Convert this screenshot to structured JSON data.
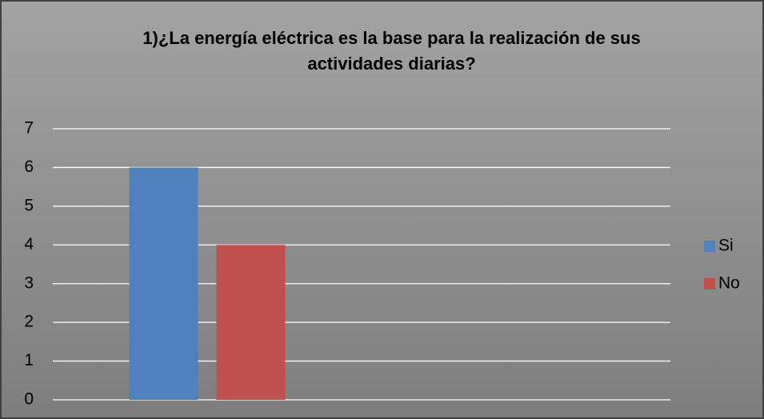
{
  "chart_data": {
    "type": "bar",
    "title": "1)¿La energía eléctrica es la base para la realización de sus actividades diarias?",
    "categories": [
      null,
      null
    ],
    "series": [
      {
        "name": "Si",
        "color": "#4f81bd",
        "values": [
          6,
          null
        ]
      },
      {
        "name": "No",
        "color": "#c0504d",
        "values": [
          4,
          null
        ]
      }
    ],
    "ylim": [
      0,
      7
    ],
    "yticks": [
      0,
      1,
      2,
      3,
      4,
      5,
      6,
      7
    ],
    "grid": true,
    "legend": "right"
  }
}
